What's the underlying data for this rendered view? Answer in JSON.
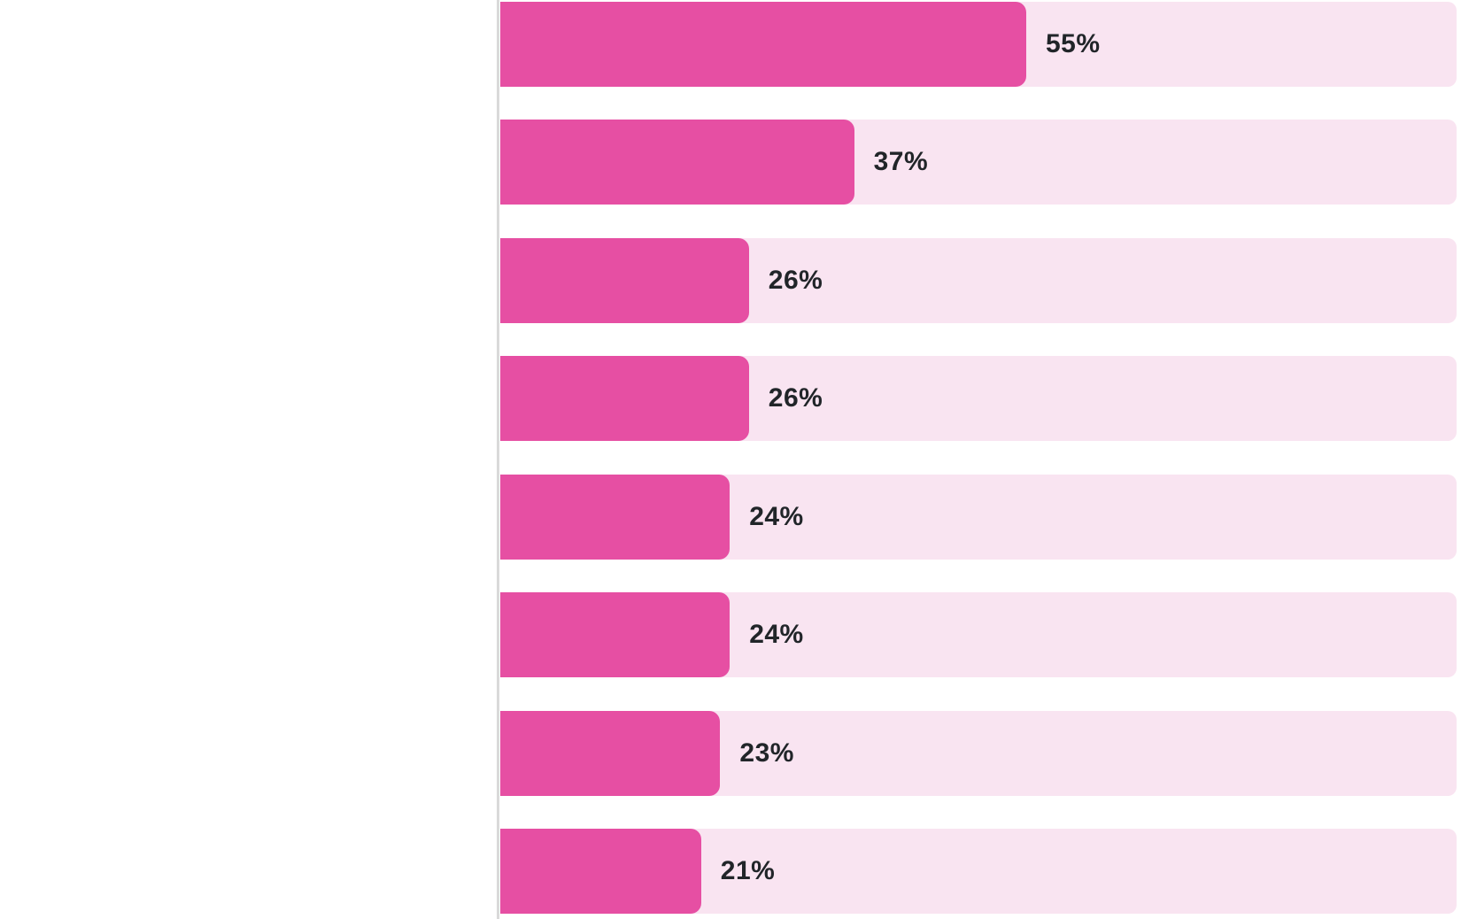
{
  "chart_data": {
    "type": "bar",
    "orientation": "horizontal",
    "values": [
      55,
      37,
      26,
      26,
      24,
      24,
      23,
      21
    ],
    "value_labels": [
      "55%",
      "37%",
      "26%",
      "26%",
      "24%",
      "24%",
      "23%",
      "21%"
    ],
    "xlim": [
      0,
      100
    ],
    "grid": false,
    "legend": false,
    "axis_line_left": true,
    "colors": {
      "bar": "#E64FA3",
      "track": "#F9E4F1",
      "axis_line": "#D9D9D9",
      "label_text": "#212529"
    }
  }
}
